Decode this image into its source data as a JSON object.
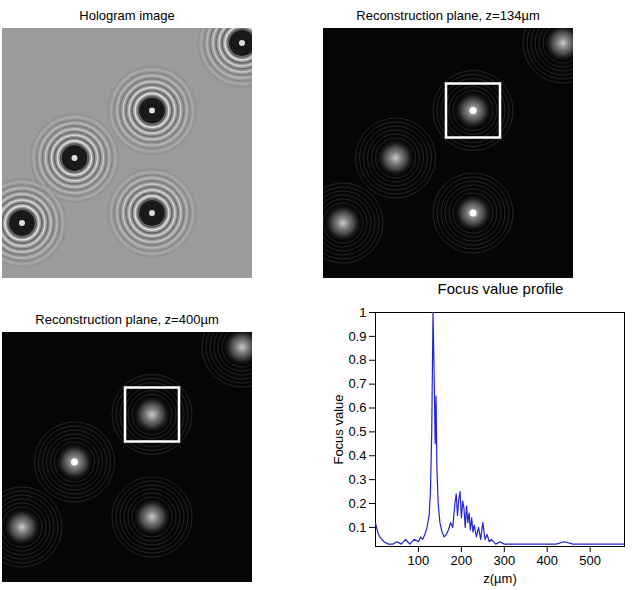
{
  "panels": [
    {
      "title": "Hologram image"
    },
    {
      "title": "Reconstruction plane, z=134µm"
    },
    {
      "title": "Reconstruction plane, z=400µm"
    }
  ],
  "chart_data": {
    "type": "line",
    "title": "Focus value profile",
    "x_label": "z(µm)",
    "y_label": "Focus value",
    "color": "#2323d6",
    "x": [
      0,
      5,
      10,
      15,
      20,
      30,
      40,
      50,
      60,
      70,
      75,
      80,
      90,
      100,
      105,
      110,
      115,
      120,
      125,
      128,
      131,
      134,
      137,
      139,
      141,
      143,
      146,
      150,
      155,
      160,
      165,
      170,
      175,
      180,
      185,
      188,
      191,
      194,
      197,
      200,
      203,
      206,
      209,
      212,
      215,
      218,
      221,
      224,
      227,
      230,
      235,
      240,
      245,
      250,
      255,
      260,
      265,
      270,
      280,
      290,
      300,
      320,
      340,
      360,
      380,
      400,
      420,
      440,
      460,
      480,
      500,
      520,
      540,
      560,
      580
    ],
    "values": [
      0.12,
      0.08,
      0.06,
      0.05,
      0.04,
      0.03,
      0.03,
      0.04,
      0.03,
      0.05,
      0.04,
      0.03,
      0.05,
      0.04,
      0.06,
      0.05,
      0.07,
      0.1,
      0.15,
      0.25,
      0.5,
      1.0,
      0.7,
      0.45,
      0.65,
      0.35,
      0.2,
      0.12,
      0.08,
      0.06,
      0.07,
      0.09,
      0.12,
      0.1,
      0.2,
      0.24,
      0.15,
      0.22,
      0.25,
      0.14,
      0.21,
      0.18,
      0.1,
      0.19,
      0.12,
      0.16,
      0.09,
      0.14,
      0.08,
      0.11,
      0.06,
      0.1,
      0.05,
      0.12,
      0.05,
      0.07,
      0.04,
      0.05,
      0.03,
      0.04,
      0.03,
      0.03,
      0.03,
      0.03,
      0.03,
      0.03,
      0.03,
      0.04,
      0.03,
      0.03,
      0.03,
      0.03,
      0.03,
      0.03,
      0.03
    ],
    "xlim": [
      0,
      580
    ],
    "ylim": [
      0.02,
      1
    ],
    "xticks": [
      100,
      200,
      300,
      400,
      500
    ],
    "yticks": [
      0.1,
      0.2,
      0.3,
      0.4,
      0.5,
      0.6,
      0.7,
      0.8,
      0.9,
      1
    ],
    "grid": false
  }
}
